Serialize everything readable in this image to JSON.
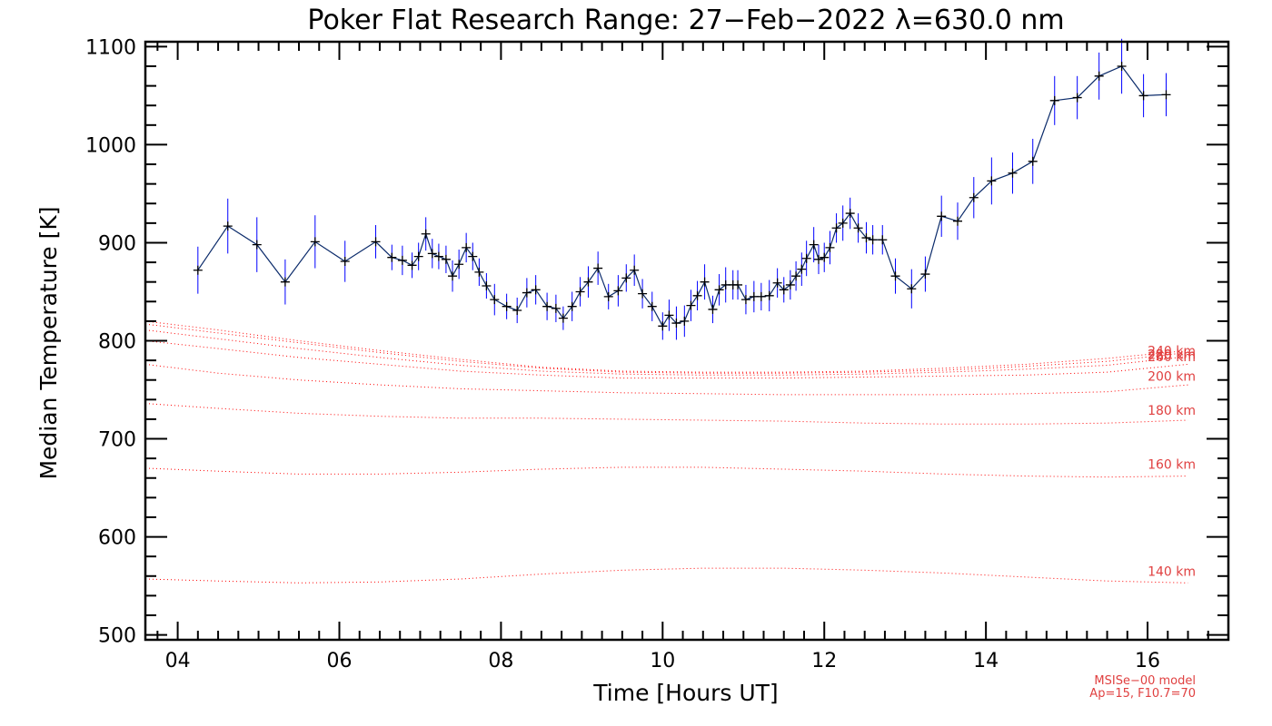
{
  "chart_data": {
    "type": "line",
    "title": "Poker Flat Research Range: 27−Feb−2022 λ=630.0 nm",
    "xlabel": "Time [Hours UT]",
    "ylabel": "Median Temperature [K]",
    "xlim": [
      3.6,
      17.0
    ],
    "ylim": [
      495,
      1105
    ],
    "x_ticks": [
      4,
      6,
      8,
      10,
      12,
      14,
      16
    ],
    "x_tick_labels": [
      "04",
      "06",
      "08",
      "10",
      "12",
      "14",
      "16"
    ],
    "y_ticks": [
      500,
      600,
      700,
      800,
      900,
      1000,
      1100
    ],
    "y_tick_labels": [
      "500",
      "600",
      "700",
      "800",
      "900",
      "1000",
      "1100"
    ],
    "grid": false,
    "colors": {
      "measurement": "#000000",
      "errorbar": "#0000ff",
      "model": "#ff0000",
      "model_label": "#e04040"
    },
    "measured": {
      "x": [
        4.25,
        4.62,
        4.98,
        5.33,
        5.7,
        6.07,
        6.45,
        6.65,
        6.78,
        6.9,
        6.98,
        7.07,
        7.15,
        7.23,
        7.32,
        7.4,
        7.48,
        7.57,
        7.65,
        7.73,
        7.82,
        7.92,
        8.07,
        8.2,
        8.32,
        8.43,
        8.57,
        8.68,
        8.77,
        8.88,
        8.98,
        9.08,
        9.2,
        9.33,
        9.45,
        9.55,
        9.65,
        9.75,
        9.87,
        10.0,
        10.08,
        10.17,
        10.27,
        10.35,
        10.43,
        10.52,
        10.62,
        10.7,
        10.78,
        10.87,
        10.93,
        11.03,
        11.13,
        11.22,
        11.32,
        11.42,
        11.5,
        11.58,
        11.65,
        11.72,
        11.78,
        11.87,
        11.93,
        12.0,
        12.07,
        12.15,
        12.23,
        12.32,
        12.42,
        12.52,
        12.6,
        12.72,
        12.88,
        13.08,
        13.25,
        13.45,
        13.65,
        13.85,
        14.07,
        14.33,
        14.58,
        14.85,
        15.13,
        15.4,
        15.68,
        15.95,
        16.23
      ],
      "y": [
        872,
        917,
        898,
        860,
        901,
        881,
        901,
        885,
        882,
        877,
        886,
        909,
        889,
        886,
        883,
        866,
        878,
        895,
        886,
        870,
        856,
        842,
        835,
        831,
        849,
        852,
        835,
        833,
        823,
        835,
        850,
        860,
        874,
        845,
        851,
        864,
        872,
        848,
        835,
        815,
        826,
        818,
        820,
        836,
        846,
        860,
        832,
        852,
        857,
        857,
        857,
        842,
        845,
        845,
        846,
        859,
        852,
        857,
        866,
        873,
        884,
        898,
        883,
        885,
        895,
        915,
        920,
        930,
        915,
        905,
        903,
        903,
        866,
        853,
        868,
        927,
        922,
        946,
        963,
        971,
        983,
        1045,
        1048,
        1070,
        1080,
        1050,
        1051
      ],
      "err": [
        24,
        28,
        28,
        23,
        27,
        21,
        17,
        13,
        15,
        13,
        14,
        17,
        15,
        13,
        14,
        16,
        15,
        15,
        14,
        14,
        13,
        16,
        13,
        13,
        15,
        15,
        14,
        14,
        12,
        15,
        15,
        16,
        17,
        13,
        16,
        14,
        16,
        15,
        15,
        14,
        16,
        17,
        16,
        16,
        15,
        18,
        14,
        16,
        18,
        15,
        15,
        15,
        16,
        14,
        16,
        15,
        13,
        15,
        15,
        17,
        18,
        18,
        15,
        15,
        17,
        15,
        18,
        16,
        15,
        16,
        15,
        15,
        18,
        20,
        18,
        21,
        19,
        21,
        24,
        21,
        23,
        25,
        22,
        24,
        28,
        22,
        22
      ]
    },
    "model": {
      "x": [
        3.6,
        4.5,
        5.5,
        6.5,
        7.5,
        8.5,
        9.5,
        10.5,
        11.5,
        12.5,
        13.5,
        14.5,
        15.5,
        16.5
      ],
      "series": [
        {
          "name": "140 km",
          "values": [
            557,
            555,
            553,
            554,
            557,
            562,
            566,
            568,
            568,
            566,
            563,
            559,
            555,
            553
          ]
        },
        {
          "name": "160 km",
          "values": [
            670,
            667,
            664,
            664,
            666,
            669,
            671,
            671,
            669,
            667,
            664,
            662,
            661,
            662
          ]
        },
        {
          "name": "180 km",
          "values": [
            736,
            731,
            726,
            723,
            721,
            721,
            720,
            719,
            718,
            716,
            715,
            715,
            716,
            719
          ]
        },
        {
          "name": "200 km",
          "values": [
            776,
            767,
            760,
            755,
            751,
            749,
            747,
            746,
            745,
            745,
            745,
            746,
            748,
            755
          ]
        },
        {
          "name": "220 km",
          "values": [
            800,
            792,
            783,
            776,
            769,
            765,
            762,
            762,
            762,
            763,
            764,
            765,
            768,
            776
          ]
        },
        {
          "name": "240 km",
          "values": [
            811,
            802,
            792,
            783,
            775,
            769,
            766,
            765,
            765,
            766,
            768,
            771,
            775,
            784
          ]
        },
        {
          "name": "260 km",
          "values": [
            817,
            808,
            798,
            788,
            779,
            772,
            768,
            767,
            767,
            768,
            770,
            774,
            779,
            788
          ]
        },
        {
          "name": "280 km",
          "values": [
            820,
            811,
            800,
            790,
            781,
            773,
            769,
            768,
            768,
            769,
            772,
            776,
            782,
            790
          ]
        }
      ],
      "label_offsets_k": [
        -12,
        -12,
        -10,
        -9,
        -10,
        -6,
        4,
        4
      ],
      "note_line1": "MSISe−00 model",
      "note_line2": "Ap=15, F10.7=70"
    }
  }
}
